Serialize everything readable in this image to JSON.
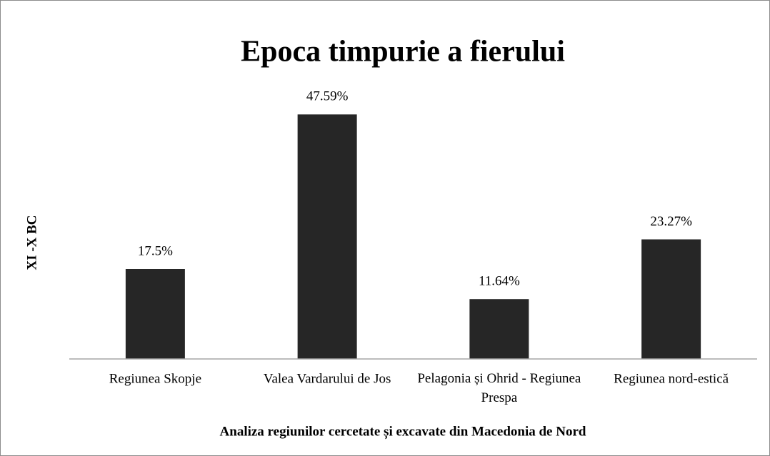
{
  "chart_data": {
    "type": "bar",
    "title": "Epoca timpurie a fierului",
    "x_label": "Analiza regiunilor cercetate și excavate din Macedonia de Nord",
    "y_label": "XI -X BC",
    "categories": [
      "Regiunea Skopje",
      "Valea Vardarului de Jos",
      "Pelagonia și Ohrid - Regiunea Prespa",
      "Regiunea nord-estică"
    ],
    "values": [
      17.5,
      47.59,
      11.64,
      23.27
    ],
    "value_labels": [
      "17.5%",
      "47.59%",
      "11.64%",
      "23.27%"
    ],
    "color": "#262626",
    "ylim": [
      0,
      50
    ]
  }
}
